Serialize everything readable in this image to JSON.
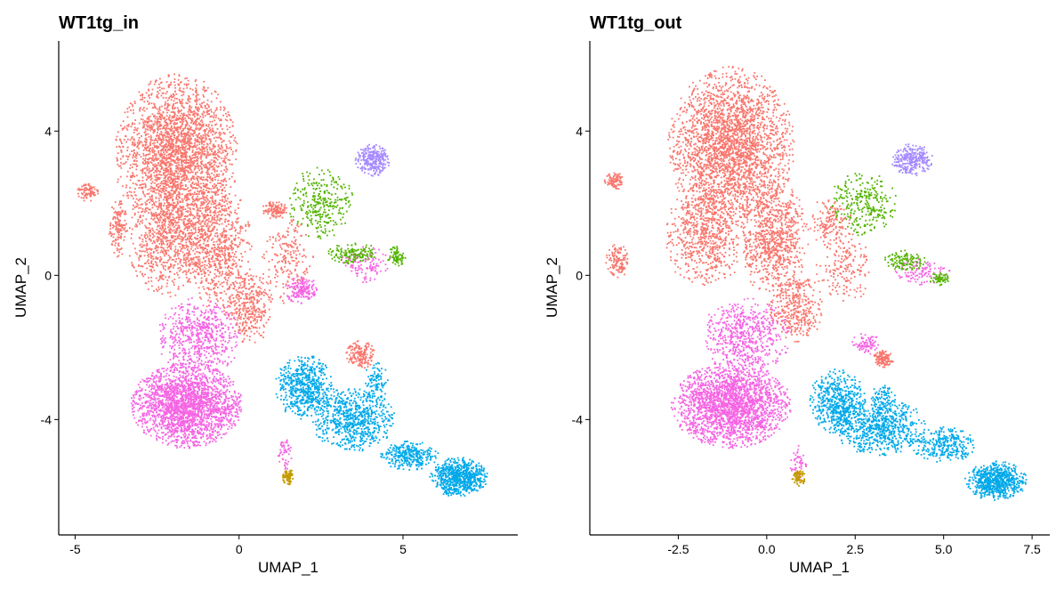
{
  "chart_data": [
    {
      "type": "scatter",
      "title": "WT1tg_in",
      "xlabel": "UMAP_1",
      "ylabel": "UMAP_2",
      "xlim": [
        -5.5,
        8.5
      ],
      "ylim": [
        -7.2,
        6.5
      ],
      "x_ticks": [
        -5,
        0,
        5
      ],
      "x_tick_labels": [
        "-5",
        "0",
        "5"
      ],
      "y_ticks": [
        -4,
        0,
        4
      ],
      "y_tick_labels": [
        "-4",
        "0",
        "4"
      ],
      "grid": false,
      "legend": "none",
      "clusters": [
        {
          "color": "#F8766D",
          "regions": [
            {
              "cx": -1.9,
              "cy": 3.3,
              "rx": 1.9,
              "ry": 2.3,
              "n": 2600
            },
            {
              "cx": -2.2,
              "cy": 1.0,
              "rx": 1.2,
              "ry": 1.6,
              "n": 700
            },
            {
              "cx": -0.7,
              "cy": 0.8,
              "rx": 1.1,
              "ry": 1.8,
              "n": 800
            },
            {
              "cx": 0.3,
              "cy": -0.9,
              "rx": 0.8,
              "ry": 1.0,
              "n": 350
            },
            {
              "cx": -4.6,
              "cy": 2.3,
              "rx": 0.35,
              "ry": 0.25,
              "n": 90
            },
            {
              "cx": -3.7,
              "cy": 1.3,
              "rx": 0.3,
              "ry": 0.8,
              "n": 140
            },
            {
              "cx": 1.1,
              "cy": 1.8,
              "rx": 0.4,
              "ry": 0.3,
              "n": 110
            },
            {
              "cx": 3.7,
              "cy": -2.2,
              "rx": 0.45,
              "ry": 0.4,
              "n": 160
            },
            {
              "cx": 1.5,
              "cy": 0.4,
              "rx": 0.8,
              "ry": 1.2,
              "n": 200
            }
          ]
        },
        {
          "color": "#F564E3",
          "regions": [
            {
              "cx": -1.6,
              "cy": -3.6,
              "rx": 1.7,
              "ry": 1.2,
              "n": 2200
            },
            {
              "cx": -1.2,
              "cy": -1.7,
              "rx": 1.3,
              "ry": 1.1,
              "n": 600
            },
            {
              "cx": 1.9,
              "cy": -0.4,
              "rx": 0.5,
              "ry": 0.4,
              "n": 160
            },
            {
              "cx": 1.4,
              "cy": -4.9,
              "rx": 0.25,
              "ry": 0.5,
              "n": 50
            },
            {
              "cx": 3.8,
              "cy": 0.3,
              "rx": 0.9,
              "ry": 0.5,
              "n": 120
            }
          ]
        },
        {
          "color": "#00A9E9",
          "regions": [
            {
              "cx": 6.7,
              "cy": -5.6,
              "rx": 0.9,
              "ry": 0.55,
              "n": 700
            },
            {
              "cx": 3.5,
              "cy": -4.0,
              "rx": 1.3,
              "ry": 0.9,
              "n": 700
            },
            {
              "cx": 2.0,
              "cy": -3.1,
              "rx": 0.9,
              "ry": 0.9,
              "n": 600
            },
            {
              "cx": 5.2,
              "cy": -5.0,
              "rx": 0.9,
              "ry": 0.4,
              "n": 300
            },
            {
              "cx": 4.2,
              "cy": -3.0,
              "rx": 0.4,
              "ry": 0.6,
              "n": 100
            }
          ]
        },
        {
          "color": "#53B400",
          "regions": [
            {
              "cx": 2.5,
              "cy": 2.0,
              "rx": 1.0,
              "ry": 1.0,
              "n": 300
            },
            {
              "cx": 3.5,
              "cy": 0.6,
              "rx": 0.8,
              "ry": 0.3,
              "n": 150
            },
            {
              "cx": 4.8,
              "cy": 0.5,
              "rx": 0.3,
              "ry": 0.3,
              "n": 80
            }
          ]
        },
        {
          "color": "#A58AFF",
          "regions": [
            {
              "cx": 4.1,
              "cy": 3.2,
              "rx": 0.55,
              "ry": 0.45,
              "n": 280
            }
          ]
        },
        {
          "color": "#C49A00",
          "regions": [
            {
              "cx": 1.5,
              "cy": -5.6,
              "rx": 0.18,
              "ry": 0.25,
              "n": 80
            }
          ]
        }
      ]
    },
    {
      "type": "scatter",
      "title": "WT1tg_out",
      "xlabel": "UMAP_1",
      "ylabel": "UMAP_2",
      "xlim": [
        -5.0,
        8.0
      ],
      "ylim": [
        -7.2,
        6.5
      ],
      "x_ticks": [
        -2.5,
        0,
        2.5,
        5,
        7.5
      ],
      "x_tick_labels": [
        "-2.5",
        "0.0",
        "2.5",
        "5.0",
        "7.5"
      ],
      "y_ticks": [
        -4,
        0,
        4
      ],
      "y_tick_labels": [
        "-4",
        "0",
        "4"
      ],
      "grid": false,
      "legend": "none",
      "clusters": [
        {
          "color": "#F8766D",
          "regions": [
            {
              "cx": -1.0,
              "cy": 3.6,
              "rx": 1.8,
              "ry": 2.2,
              "n": 2600
            },
            {
              "cx": -1.7,
              "cy": 1.1,
              "rx": 1.2,
              "ry": 1.5,
              "n": 700
            },
            {
              "cx": 0.2,
              "cy": 1.0,
              "rx": 1.0,
              "ry": 1.6,
              "n": 800
            },
            {
              "cx": 0.8,
              "cy": -0.9,
              "rx": 0.8,
              "ry": 1.0,
              "n": 350
            },
            {
              "cx": -4.3,
              "cy": 2.6,
              "rx": 0.3,
              "ry": 0.25,
              "n": 90
            },
            {
              "cx": -4.2,
              "cy": 0.4,
              "rx": 0.35,
              "ry": 0.5,
              "n": 120
            },
            {
              "cx": 1.8,
              "cy": 1.5,
              "rx": 0.6,
              "ry": 0.7,
              "n": 150
            },
            {
              "cx": 3.3,
              "cy": -2.3,
              "rx": 0.3,
              "ry": 0.25,
              "n": 130
            },
            {
              "cx": 2.2,
              "cy": 0.2,
              "rx": 0.8,
              "ry": 1.0,
              "n": 180
            }
          ]
        },
        {
          "color": "#F564E3",
          "regions": [
            {
              "cx": -1.0,
              "cy": -3.6,
              "rx": 1.7,
              "ry": 1.2,
              "n": 2200
            },
            {
              "cx": -0.6,
              "cy": -1.7,
              "rx": 1.3,
              "ry": 1.1,
              "n": 600
            },
            {
              "cx": 2.8,
              "cy": -1.9,
              "rx": 0.4,
              "ry": 0.3,
              "n": 80
            },
            {
              "cx": 0.9,
              "cy": -5.2,
              "rx": 0.25,
              "ry": 0.5,
              "n": 50
            },
            {
              "cx": 4.4,
              "cy": 0.1,
              "rx": 0.8,
              "ry": 0.4,
              "n": 110
            }
          ]
        },
        {
          "color": "#00A9E9",
          "regions": [
            {
              "cx": 6.5,
              "cy": -5.7,
              "rx": 0.9,
              "ry": 0.55,
              "n": 700
            },
            {
              "cx": 3.2,
              "cy": -4.2,
              "rx": 1.3,
              "ry": 0.8,
              "n": 700
            },
            {
              "cx": 2.0,
              "cy": -3.5,
              "rx": 0.8,
              "ry": 0.9,
              "n": 550
            },
            {
              "cx": 5.0,
              "cy": -4.7,
              "rx": 0.9,
              "ry": 0.5,
              "n": 300
            },
            {
              "cx": 3.3,
              "cy": -3.4,
              "rx": 0.4,
              "ry": 0.4,
              "n": 80
            }
          ]
        },
        {
          "color": "#53B400",
          "regions": [
            {
              "cx": 2.7,
              "cy": 2.0,
              "rx": 1.0,
              "ry": 0.9,
              "n": 280
            },
            {
              "cx": 3.9,
              "cy": 0.4,
              "rx": 0.6,
              "ry": 0.3,
              "n": 120
            },
            {
              "cx": 4.9,
              "cy": -0.1,
              "rx": 0.3,
              "ry": 0.2,
              "n": 60
            }
          ]
        },
        {
          "color": "#A58AFF",
          "regions": [
            {
              "cx": 4.1,
              "cy": 3.2,
              "rx": 0.6,
              "ry": 0.45,
              "n": 280
            }
          ]
        },
        {
          "color": "#C49A00",
          "regions": [
            {
              "cx": 0.9,
              "cy": -5.6,
              "rx": 0.2,
              "ry": 0.25,
              "n": 80
            }
          ]
        }
      ]
    }
  ]
}
